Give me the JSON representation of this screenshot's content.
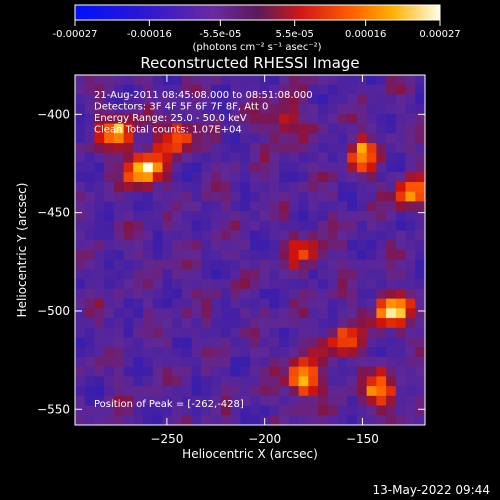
{
  "colorbar": {
    "tick_labels": [
      "-0.00027",
      "-0.00016",
      "-5.5e-05",
      "5.5e-05",
      "0.00016",
      "0.00027"
    ],
    "units": "(photons cm⁻² s⁻¹ asec⁻²)"
  },
  "chart_data": {
    "type": "heatmap",
    "title": "Reconstructed RHESSI Image",
    "xlabel": "Heliocentric X (arcsec)",
    "ylabel": "Heliocentric Y (arcsec)",
    "xlim": [
      -297,
      -118
    ],
    "ylim": [
      -558,
      -380
    ],
    "x_ticks": [
      -250,
      -200,
      -150
    ],
    "y_ticks": [
      -400,
      -450,
      -500,
      -550
    ],
    "x_tick_labels": [
      "−250",
      "−200",
      "−150"
    ],
    "y_tick_labels": [
      "−400",
      "−450",
      "−500",
      "−550"
    ],
    "colormap": "blue-purple-red-yellow-white (RHESSI)",
    "value_range": [
      -0.00027,
      0.00027
    ],
    "bright_regions": [
      {
        "x": -275,
        "y": -410,
        "intensity": 0.8
      },
      {
        "x": -245,
        "y": -412,
        "intensity": 0.75
      },
      {
        "x": -190,
        "y": -404,
        "intensity": 0.6
      },
      {
        "x": -150,
        "y": -420,
        "intensity": 0.7
      },
      {
        "x": -125,
        "y": -440,
        "intensity": 0.7
      },
      {
        "x": -180,
        "y": -470,
        "intensity": 0.5
      },
      {
        "x": -135,
        "y": -500,
        "intensity": 0.9
      },
      {
        "x": -160,
        "y": -515,
        "intensity": 0.55
      },
      {
        "x": -262,
        "y": -428,
        "intensity": 1.0
      },
      {
        "x": -180,
        "y": -535,
        "intensity": 0.95
      },
      {
        "x": -140,
        "y": -540,
        "intensity": 0.75
      }
    ],
    "annotations": [
      "21-Aug-2011 08:45:08.000 to 08:51:08.000",
      "Detectors: 3F 4F 5F 6F 7F 8F, Att 0",
      "Energy Range: 25.0 - 50.0 keV",
      "Clean    Total counts: 1.07E+04"
    ],
    "peak_label": "Position of Peak = [-262,-428]"
  },
  "footer": {
    "timestamp": "13-May-2022 09:44"
  }
}
